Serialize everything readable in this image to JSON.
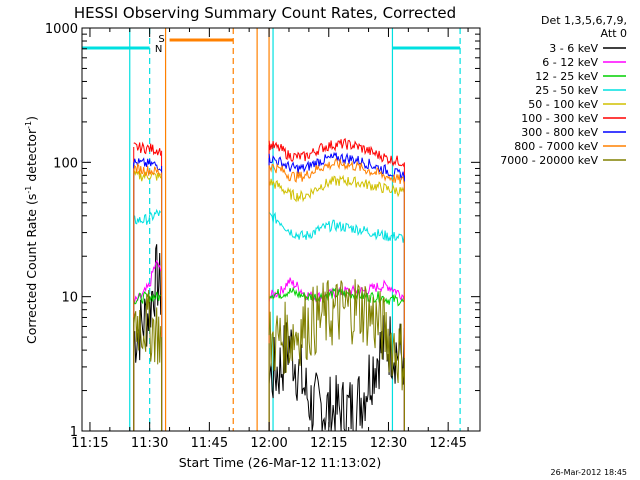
{
  "chart_data": {
    "type": "line",
    "title": "HESSI Observing Summary Count Rates, Corrected",
    "xlabel": "Start Time (26-Mar-12 11:13:02)",
    "ylabel": "Corrected Count Rate (s⁻¹ detector⁻¹)",
    "ylabel_main": "Corrected Count Rate (s",
    "ylabel_mid": " detector",
    "ylabel_end": ")",
    "ylabel_sup": "-1",
    "y_scale": "log",
    "ylim": [
      1,
      1000
    ],
    "xlim": [
      "11:13",
      "12:53"
    ],
    "x_ticks": [
      "11:15",
      "11:30",
      "11:45",
      "12:00",
      "12:15",
      "12:30",
      "12:45"
    ],
    "y_ticks": [
      "1",
      "10",
      "100",
      "1000"
    ],
    "footer": "26-Mar-2012 18:45",
    "legend_header": [
      "Det 1,3,5,6,7,9,",
      "Att 0"
    ],
    "legend_placement": "right, outside plot",
    "flags": {
      "saa_label": "S",
      "night_label": "N",
      "saa_color": "#ff8000",
      "night_color": "#00e0e0",
      "saa_bar": {
        "start": "11:35",
        "end": "11:51"
      },
      "night_bars": [
        {
          "start": "11:13",
          "end": "11:30"
        },
        {
          "start": "12:31",
          "end": "12:48"
        }
      ],
      "night_lines_solid": [
        "11:25",
        "12:01",
        "12:31"
      ],
      "night_lines_dashed": [
        "11:30",
        "12:48"
      ],
      "saa_lines_solid": [
        "11:34",
        "11:57",
        "12:00"
      ],
      "saa_lines_dashed": [
        "11:51"
      ]
    },
    "intervals": [
      {
        "start": "11:26",
        "end": "11:33"
      },
      {
        "start": "12:00",
        "end": "12:34"
      }
    ],
    "series": [
      {
        "name": "3 - 6 keV",
        "color": "#000000",
        "points": [
          [
            "11:26",
            5
          ],
          [
            "11:28",
            6
          ],
          [
            "11:30",
            8
          ],
          [
            "11:31",
            12
          ],
          [
            "11:32",
            14
          ],
          [
            "11:33",
            10
          ],
          [
            "12:00",
            2.5
          ],
          [
            "12:03",
            3
          ],
          [
            "12:05",
            4.5
          ],
          [
            "12:07",
            3
          ],
          [
            "12:09",
            2
          ],
          [
            "12:11",
            1.5
          ],
          [
            "12:13",
            1.5
          ],
          [
            "12:16",
            1.4
          ],
          [
            "12:19",
            1.4
          ],
          [
            "12:22",
            1.5
          ],
          [
            "12:24",
            2
          ],
          [
            "12:26",
            3
          ],
          [
            "12:28",
            4
          ],
          [
            "12:30",
            4.5
          ],
          [
            "12:32",
            4
          ],
          [
            "12:34",
            3.5
          ]
        ]
      },
      {
        "name": "6 - 12 keV",
        "color": "#ff00ff",
        "points": [
          [
            "11:26",
            9
          ],
          [
            "11:28",
            10
          ],
          [
            "11:30",
            12
          ],
          [
            "11:31",
            16
          ],
          [
            "11:32",
            18
          ],
          [
            "11:33",
            14
          ],
          [
            "12:00",
            10
          ],
          [
            "12:03",
            11
          ],
          [
            "12:05",
            13
          ],
          [
            "12:07",
            12
          ],
          [
            "12:09",
            10.5
          ],
          [
            "12:11",
            10
          ],
          [
            "12:13",
            10
          ],
          [
            "12:16",
            10.5
          ],
          [
            "12:19",
            11
          ],
          [
            "12:22",
            11
          ],
          [
            "12:24",
            11
          ],
          [
            "12:26",
            11.5
          ],
          [
            "12:28",
            12
          ],
          [
            "12:30",
            12
          ],
          [
            "12:32",
            11
          ],
          [
            "12:34",
            10
          ]
        ]
      },
      {
        "name": "12 - 25 keV",
        "color": "#00d000",
        "points": [
          [
            "11:26",
            9.5
          ],
          [
            "11:28",
            9.8
          ],
          [
            "11:30",
            10
          ],
          [
            "11:31",
            10
          ],
          [
            "11:32",
            10
          ],
          [
            "11:33",
            9.8
          ],
          [
            "12:00",
            10.5
          ],
          [
            "12:03",
            10.5
          ],
          [
            "12:05",
            11
          ],
          [
            "12:07",
            10.5
          ],
          [
            "12:09",
            10
          ],
          [
            "12:11",
            10
          ],
          [
            "12:13",
            10
          ],
          [
            "12:16",
            10.5
          ],
          [
            "12:19",
            10.5
          ],
          [
            "12:22",
            10.5
          ],
          [
            "12:24",
            10
          ],
          [
            "12:26",
            10
          ],
          [
            "12:28",
            10
          ],
          [
            "12:30",
            9.5
          ],
          [
            "12:32",
            9.5
          ],
          [
            "12:34",
            9
          ]
        ]
      },
      {
        "name": "25 - 50 keV",
        "color": "#00e0e0",
        "points": [
          [
            "11:26",
            37
          ],
          [
            "11:28",
            37
          ],
          [
            "11:30",
            38
          ],
          [
            "11:31",
            40
          ],
          [
            "11:32",
            42
          ],
          [
            "11:33",
            40
          ],
          [
            "12:00",
            40
          ],
          [
            "12:03",
            36
          ],
          [
            "12:05",
            31
          ],
          [
            "12:07",
            29
          ],
          [
            "12:09",
            28
          ],
          [
            "12:11",
            30
          ],
          [
            "12:13",
            32
          ],
          [
            "12:16",
            34
          ],
          [
            "12:19",
            33
          ],
          [
            "12:22",
            32
          ],
          [
            "12:24",
            31
          ],
          [
            "12:26",
            30
          ],
          [
            "12:28",
            29
          ],
          [
            "12:30",
            28
          ],
          [
            "12:32",
            28
          ],
          [
            "12:34",
            27
          ]
        ]
      },
      {
        "name": "50 - 100 keV",
        "color": "#d0c000",
        "points": [
          [
            "11:26",
            80
          ],
          [
            "11:28",
            79
          ],
          [
            "11:30",
            80
          ],
          [
            "11:31",
            79
          ],
          [
            "11:32",
            78
          ],
          [
            "11:33",
            77
          ],
          [
            "12:00",
            72
          ],
          [
            "12:03",
            65
          ],
          [
            "12:05",
            58
          ],
          [
            "12:07",
            56
          ],
          [
            "12:09",
            56
          ],
          [
            "12:11",
            61
          ],
          [
            "12:13",
            67
          ],
          [
            "12:16",
            72
          ],
          [
            "12:19",
            73
          ],
          [
            "12:22",
            71
          ],
          [
            "12:24",
            69
          ],
          [
            "12:26",
            67
          ],
          [
            "12:28",
            65
          ],
          [
            "12:30",
            63
          ],
          [
            "12:32",
            62
          ],
          [
            "12:34",
            60
          ]
        ]
      },
      {
        "name": "100 - 300 keV",
        "color": "#ff0000",
        "points": [
          [
            "11:26",
            130
          ],
          [
            "11:28",
            128
          ],
          [
            "11:30",
            127
          ],
          [
            "11:31",
            125
          ],
          [
            "11:32",
            124
          ],
          [
            "11:33",
            122
          ],
          [
            "12:00",
            135
          ],
          [
            "12:03",
            125
          ],
          [
            "12:05",
            112
          ],
          [
            "12:07",
            110
          ],
          [
            "12:09",
            110
          ],
          [
            "12:11",
            118
          ],
          [
            "12:13",
            128
          ],
          [
            "12:16",
            135
          ],
          [
            "12:19",
            137
          ],
          [
            "12:22",
            132
          ],
          [
            "12:24",
            125
          ],
          [
            "12:26",
            118
          ],
          [
            "12:28",
            112
          ],
          [
            "12:30",
            106
          ],
          [
            "12:32",
            103
          ],
          [
            "12:34",
            100
          ]
        ]
      },
      {
        "name": "300 - 800 keV",
        "color": "#0000ff",
        "points": [
          [
            "11:26",
            100
          ],
          [
            "11:28",
            98
          ],
          [
            "11:30",
            97
          ],
          [
            "11:31",
            96
          ],
          [
            "11:32",
            95
          ],
          [
            "11:33",
            94
          ],
          [
            "12:00",
            108
          ],
          [
            "12:03",
            100
          ],
          [
            "12:05",
            92
          ],
          [
            "12:07",
            90
          ],
          [
            "12:09",
            90
          ],
          [
            "12:11",
            97
          ],
          [
            "12:13",
            103
          ],
          [
            "12:16",
            108
          ],
          [
            "12:19",
            108
          ],
          [
            "12:22",
            104
          ],
          [
            "12:24",
            100
          ],
          [
            "12:26",
            95
          ],
          [
            "12:28",
            90
          ],
          [
            "12:30",
            86
          ],
          [
            "12:32",
            82
          ],
          [
            "12:34",
            80
          ]
        ]
      },
      {
        "name": "800 - 7000 keV",
        "color": "#ff8000",
        "points": [
          [
            "11:26",
            90
          ],
          [
            "11:28",
            88
          ],
          [
            "11:30",
            87
          ],
          [
            "11:31",
            86
          ],
          [
            "11:32",
            85
          ],
          [
            "11:33",
            84
          ],
          [
            "12:00",
            95
          ],
          [
            "12:03",
            88
          ],
          [
            "12:05",
            80
          ],
          [
            "12:07",
            78
          ],
          [
            "12:09",
            79
          ],
          [
            "12:11",
            86
          ],
          [
            "12:13",
            92
          ],
          [
            "12:16",
            97
          ],
          [
            "12:19",
            97
          ],
          [
            "12:22",
            93
          ],
          [
            "12:24",
            89
          ],
          [
            "12:26",
            85
          ],
          [
            "12:28",
            81
          ],
          [
            "12:30",
            78
          ],
          [
            "12:32",
            75
          ],
          [
            "12:34",
            72
          ]
        ]
      },
      {
        "name": "7000 - 20000 keV",
        "color": "#808000",
        "points": [
          [
            "11:26",
            7
          ],
          [
            "11:28",
            6.5
          ],
          [
            "11:30",
            6
          ],
          [
            "11:31",
            6
          ],
          [
            "11:32",
            5.5
          ],
          [
            "11:33",
            5
          ],
          [
            "12:00",
            4.5
          ],
          [
            "12:03",
            4.8
          ],
          [
            "12:05",
            5
          ],
          [
            "12:07",
            5.5
          ],
          [
            "12:09",
            6
          ],
          [
            "12:11",
            6.5
          ],
          [
            "12:13",
            7
          ],
          [
            "12:16",
            7.5
          ],
          [
            "12:19",
            8
          ],
          [
            "12:22",
            8.5
          ],
          [
            "12:24",
            8
          ],
          [
            "12:26",
            7
          ],
          [
            "12:28",
            6
          ],
          [
            "12:30",
            5
          ],
          [
            "12:32",
            4
          ],
          [
            "12:34",
            3.5
          ]
        ]
      }
    ]
  }
}
